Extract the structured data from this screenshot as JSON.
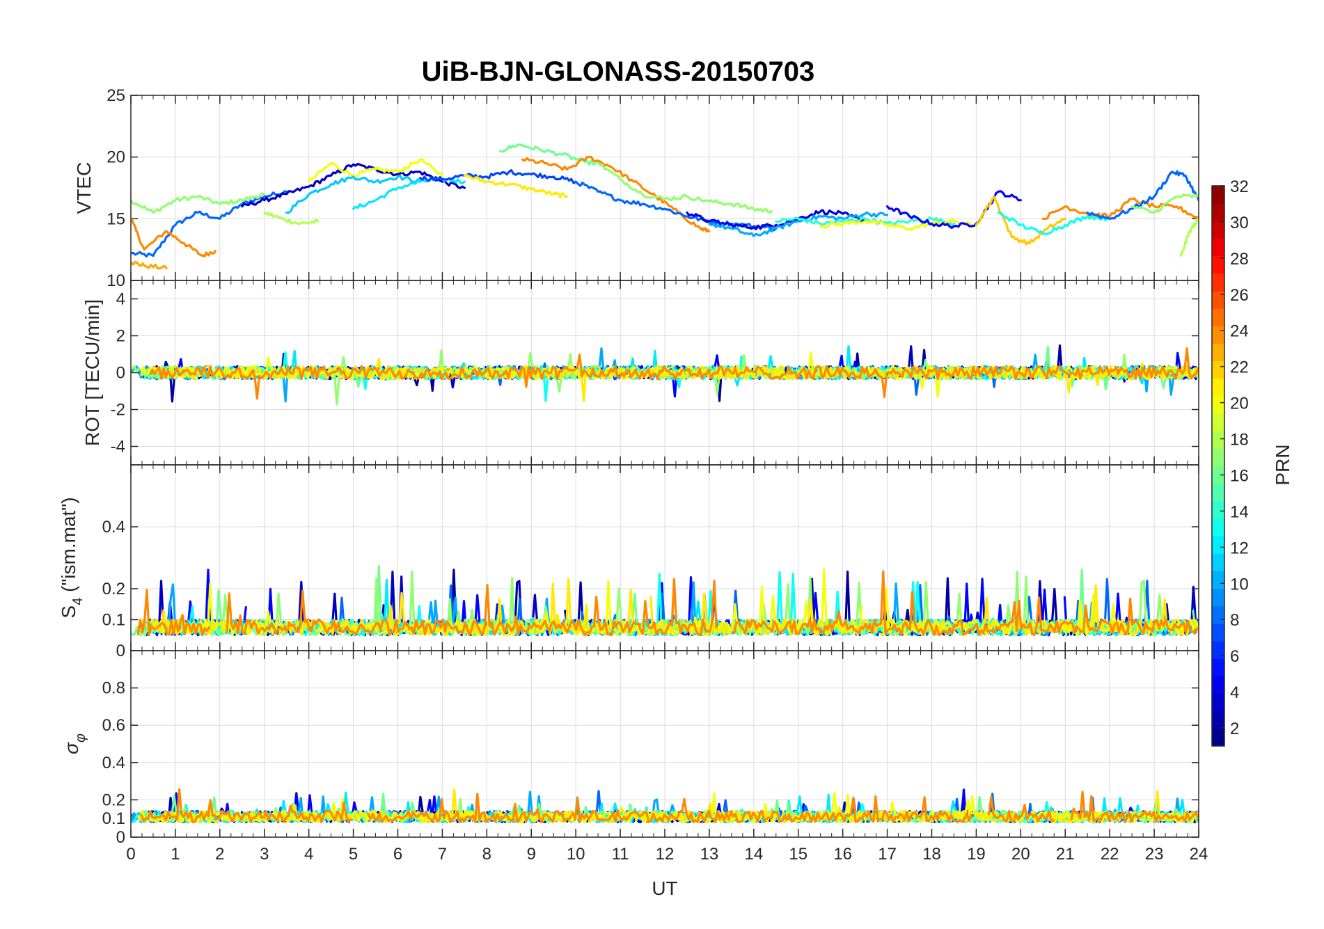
{
  "title": "UiB-BJN-GLONASS-20150703",
  "xlabel": "UT",
  "colorbar": {
    "label": "PRN",
    "ticks": [
      "2",
      "4",
      "6",
      "8",
      "10",
      "12",
      "14",
      "16",
      "18",
      "20",
      "22",
      "24",
      "26",
      "28",
      "30",
      "32"
    ],
    "range": [
      1,
      32
    ],
    "colormap": "jet"
  },
  "chart_data": [
    {
      "type": "line",
      "panel": "VTEC",
      "ylabel": "VTEC",
      "xlim": [
        0,
        24
      ],
      "ylim": [
        10,
        25
      ],
      "yticks": [
        "10",
        "15",
        "20",
        "25"
      ],
      "grid": true,
      "series": [
        {
          "prn": 8,
          "x": [
            0.0,
            0.5,
            1.0,
            1.5,
            2.0,
            2.5,
            3.0,
            3.5
          ],
          "y": [
            12.2,
            12.0,
            14.5,
            15.5,
            15.0,
            16.2,
            16.8,
            17.2
          ]
        },
        {
          "prn": 17,
          "x": [
            0.0,
            0.5,
            1.0,
            1.5,
            2.0,
            2.5,
            3.0
          ],
          "y": [
            16.5,
            15.5,
            16.5,
            16.8,
            16.2,
            16.5,
            17.0
          ]
        },
        {
          "prn": 24,
          "x": [
            0.0,
            0.3,
            0.8,
            1.2,
            1.6,
            1.9
          ],
          "y": [
            15.0,
            12.5,
            14.0,
            13.0,
            12.0,
            12.4
          ]
        },
        {
          "prn": 23,
          "x": [
            0.0,
            0.3,
            0.8
          ],
          "y": [
            11.5,
            11.2,
            11.0
          ]
        },
        {
          "prn": 18,
          "x": [
            3.0,
            3.4,
            3.8,
            4.2
          ],
          "y": [
            15.5,
            15.0,
            14.6,
            14.8
          ]
        },
        {
          "prn": 3,
          "x": [
            2.5,
            3.0,
            3.5,
            4.0,
            4.5,
            5.0,
            5.5,
            6.0,
            6.5,
            7.0,
            7.5
          ],
          "y": [
            16.0,
            16.5,
            17.0,
            17.6,
            18.5,
            19.4,
            19.0,
            18.6,
            18.8,
            18.0,
            17.5
          ]
        },
        {
          "prn": 20,
          "x": [
            4.0,
            4.5,
            5.0,
            5.5,
            6.0,
            6.5,
            7.0
          ],
          "y": [
            18.0,
            19.5,
            18.5,
            19.0,
            18.8,
            19.8,
            18.5
          ]
        },
        {
          "prn": 11,
          "x": [
            3.5,
            4.0,
            4.5,
            5.0,
            5.5,
            6.0,
            6.5
          ],
          "y": [
            15.5,
            17.0,
            17.8,
            18.4,
            18.0,
            18.4,
            18.0
          ]
        },
        {
          "prn": 12,
          "x": [
            5.0,
            5.5,
            6.0,
            6.5,
            7.0,
            7.5
          ],
          "y": [
            15.8,
            16.5,
            17.5,
            18.0,
            18.2,
            18.0
          ]
        },
        {
          "prn": 7,
          "x": [
            6.5,
            7.0,
            7.5,
            8.0,
            8.5,
            9.0,
            9.5,
            10.0
          ],
          "y": [
            18.3,
            18.2,
            18.5,
            18.4,
            18.8,
            18.6,
            18.4,
            18.0
          ]
        },
        {
          "prn": 21,
          "x": [
            7.5,
            8.0,
            8.5,
            9.0,
            9.5,
            9.8
          ],
          "y": [
            18.5,
            18.0,
            17.8,
            17.4,
            17.0,
            16.8
          ]
        },
        {
          "prn": 16,
          "x": [
            8.3,
            8.7,
            9.2,
            9.7,
            10.2,
            10.7
          ],
          "y": [
            20.5,
            21.0,
            20.6,
            20.2,
            19.6,
            19.4
          ]
        },
        {
          "prn": 24,
          "x": [
            8.8,
            9.3,
            9.8,
            10.3,
            10.8,
            11.3,
            11.8,
            12.3,
            12.8,
            13.0
          ],
          "y": [
            19.8,
            19.5,
            19.0,
            20.0,
            19.2,
            18.0,
            16.8,
            15.5,
            14.2,
            14.0
          ]
        },
        {
          "prn": 8,
          "x": [
            10.0,
            10.5,
            11.0,
            11.5,
            12.0,
            12.5,
            13.0,
            13.5,
            14.0,
            14.5
          ],
          "y": [
            18.0,
            17.2,
            16.5,
            16.2,
            15.8,
            15.2,
            14.8,
            14.6,
            14.4,
            14.2
          ]
        },
        {
          "prn": 17,
          "x": [
            10.5,
            11.0,
            11.5,
            12.0,
            12.5,
            13.0,
            13.5,
            14.0,
            14.4
          ],
          "y": [
            19.5,
            18.2,
            17.0,
            16.6,
            16.8,
            16.4,
            16.2,
            15.8,
            15.6
          ]
        },
        {
          "prn": 4,
          "x": [
            12.5,
            13.0,
            13.5,
            14.0,
            14.5,
            15.0,
            15.5,
            16.0,
            16.5
          ],
          "y": [
            15.5,
            14.8,
            14.5,
            14.3,
            14.5,
            15.0,
            15.6,
            15.4,
            14.8
          ]
        },
        {
          "prn": 10,
          "x": [
            13.0,
            13.5,
            14.0,
            14.5,
            15.0,
            15.5,
            16.0,
            16.5,
            17.0
          ],
          "y": [
            14.6,
            14.2,
            13.6,
            14.2,
            14.8,
            15.2,
            15.0,
            15.4,
            15.3
          ]
        },
        {
          "prn": 14,
          "x": [
            14.5,
            15.0,
            15.5,
            16.0,
            16.5,
            17.0,
            17.5,
            18.0,
            18.5
          ],
          "y": [
            14.8,
            15.0,
            14.6,
            14.8,
            15.0,
            14.6,
            14.8,
            15.0,
            14.6
          ]
        },
        {
          "prn": 20,
          "x": [
            15.5,
            16.0,
            16.5,
            17.0,
            17.5,
            18.0,
            18.5,
            19.0
          ],
          "y": [
            14.4,
            14.6,
            14.8,
            14.5,
            14.2,
            14.6,
            14.8,
            14.4
          ]
        },
        {
          "prn": 5,
          "x": [
            17.0,
            17.5,
            18.0,
            18.5,
            19.0,
            19.5,
            20.0
          ],
          "y": [
            16.0,
            15.2,
            14.6,
            14.4,
            14.6,
            17.2,
            16.5
          ]
        },
        {
          "prn": 22,
          "x": [
            19.0,
            19.4,
            19.8,
            20.2,
            20.6,
            21.0
          ],
          "y": [
            14.5,
            16.8,
            13.5,
            13.0,
            14.2,
            15.0
          ]
        },
        {
          "prn": 13,
          "x": [
            19.5,
            20.0,
            20.5,
            21.0,
            21.5,
            22.0
          ],
          "y": [
            15.5,
            14.5,
            13.8,
            14.5,
            15.2,
            15.0
          ]
        },
        {
          "prn": 24,
          "x": [
            20.5,
            21.0,
            21.5,
            22.0,
            22.5,
            23.0,
            23.5,
            24.0
          ],
          "y": [
            15.0,
            16.0,
            15.4,
            15.2,
            16.6,
            16.0,
            16.0,
            15.0
          ]
        },
        {
          "prn": 8,
          "x": [
            21.5,
            22.0,
            22.5,
            23.0,
            23.4,
            23.7,
            24.0
          ],
          "y": [
            15.5,
            15.0,
            15.8,
            16.8,
            18.8,
            18.5,
            16.5
          ]
        },
        {
          "prn": 17,
          "x": [
            22.5,
            23.0,
            23.5,
            24.0
          ],
          "y": [
            16.0,
            15.5,
            16.8,
            16.8
          ]
        },
        {
          "prn": 18,
          "x": [
            23.6,
            23.8,
            24.0
          ],
          "y": [
            12.0,
            14.0,
            15.0
          ]
        }
      ]
    },
    {
      "type": "line",
      "panel": "ROT",
      "ylabel": "ROT [TECU/min]",
      "xlim": [
        0,
        24
      ],
      "ylim": [
        -5,
        5
      ],
      "yticks": [
        "-4",
        "-2",
        "0",
        "2",
        "4"
      ],
      "grid": true,
      "value_band": [
        -1.9,
        1.9
      ]
    },
    {
      "type": "line",
      "panel": "S4",
      "ylabel": "S4 (\"ism.mat\")",
      "xlim": [
        0,
        24
      ],
      "ylim": [
        0,
        0.6
      ],
      "yticks": [
        "0",
        "0.1",
        "0.2",
        "0.4"
      ],
      "grid": true,
      "value_band": [
        0.03,
        0.28
      ]
    },
    {
      "type": "line",
      "panel": "sigma-phi",
      "ylabel": "σφ",
      "xlim": [
        0,
        24
      ],
      "ylim": [
        0,
        1
      ],
      "yticks": [
        "0",
        "0.1",
        "0.2",
        "0.4",
        "0.6",
        "0.8"
      ],
      "xticks": [
        "0",
        "1",
        "2",
        "3",
        "4",
        "5",
        "6",
        "7",
        "8",
        "9",
        "10",
        "11",
        "12",
        "13",
        "14",
        "15",
        "16",
        "17",
        "18",
        "19",
        "20",
        "21",
        "22",
        "23",
        "24"
      ],
      "grid": true,
      "value_band": [
        0.04,
        0.29
      ]
    }
  ]
}
